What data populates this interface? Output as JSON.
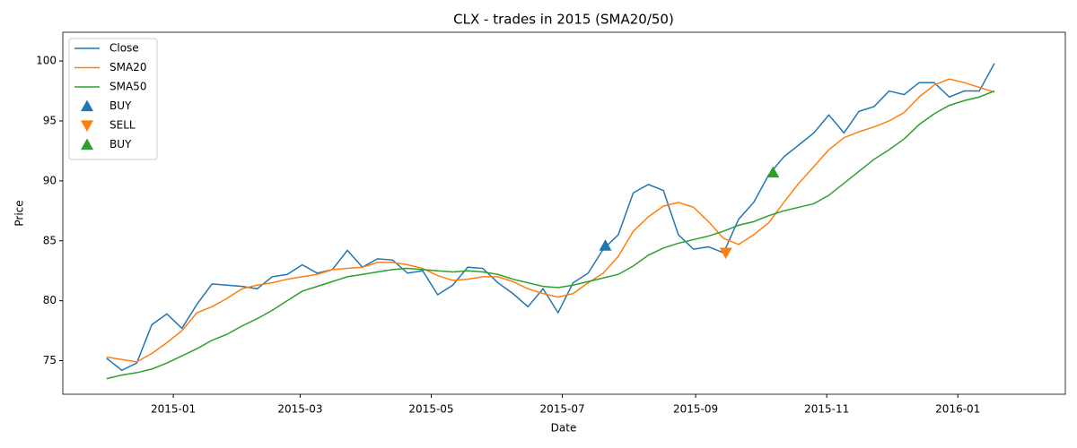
{
  "chart_data": {
    "type": "line",
    "title": "CLX - trades in 2015 (SMA20/50)",
    "x_label": "Date",
    "y_label": "Price",
    "x": [
      16405,
      16412,
      16419,
      16426,
      16433,
      16440,
      16447,
      16454,
      16461,
      16468,
      16475,
      16482,
      16489,
      16496,
      16503,
      16510,
      16517,
      16524,
      16531,
      16538,
      16545,
      16552,
      16559,
      16566,
      16573,
      16580,
      16587,
      16594,
      16601,
      16608,
      16615,
      16622,
      16629,
      16636,
      16643,
      16650,
      16657,
      16664,
      16671,
      16678,
      16685,
      16692,
      16699,
      16706,
      16713,
      16720,
      16727,
      16734,
      16741,
      16748,
      16755,
      16762,
      16769,
      16776,
      16783,
      16790,
      16797,
      16804,
      16811,
      16818
    ],
    "series": [
      {
        "name": "Close",
        "color": "#1f77b4",
        "values": [
          75.2,
          74.2,
          74.8,
          78.0,
          78.9,
          77.7,
          79.7,
          81.4,
          81.3,
          81.2,
          81.0,
          82.0,
          82.2,
          83.0,
          82.3,
          82.6,
          84.2,
          82.8,
          83.5,
          83.4,
          82.3,
          82.5,
          80.5,
          81.3,
          82.8,
          82.7,
          81.5,
          80.6,
          79.5,
          81.0,
          79.0,
          81.5,
          82.3,
          84.3,
          85.5,
          89.0,
          89.7,
          89.2,
          85.5,
          84.3,
          84.5,
          84.0,
          86.8,
          88.2,
          90.5,
          92.0,
          93.0,
          94.0,
          95.5,
          94.0,
          95.8,
          96.2,
          97.5,
          97.2,
          98.2,
          98.2,
          97.0,
          97.5,
          97.5,
          99.8
        ]
      },
      {
        "name": "SMA20",
        "color": "#ff7f0e",
        "values": [
          75.3,
          75.1,
          74.9,
          75.6,
          76.5,
          77.5,
          79.0,
          79.5,
          80.2,
          81.0,
          81.3,
          81.5,
          81.8,
          82.0,
          82.2,
          82.6,
          82.7,
          82.8,
          83.2,
          83.2,
          83.0,
          82.7,
          82.1,
          81.7,
          81.8,
          82.0,
          82.0,
          81.6,
          81.0,
          80.6,
          80.3,
          80.6,
          81.5,
          82.3,
          83.7,
          85.8,
          87.0,
          87.9,
          88.2,
          87.8,
          86.6,
          85.2,
          84.7,
          85.5,
          86.5,
          88.2,
          89.8,
          91.2,
          92.6,
          93.6,
          94.1,
          94.5,
          95.0,
          95.7,
          97.0,
          98.0,
          98.5,
          98.2,
          97.8,
          97.4
        ]
      },
      {
        "name": "SMA50",
        "color": "#2ca02c",
        "values": [
          73.5,
          73.8,
          74.0,
          74.3,
          74.8,
          75.4,
          76.0,
          76.7,
          77.2,
          77.9,
          78.5,
          79.2,
          80.0,
          80.8,
          81.2,
          81.6,
          82.0,
          82.2,
          82.4,
          82.6,
          82.7,
          82.6,
          82.5,
          82.4,
          82.5,
          82.4,
          82.2,
          81.8,
          81.5,
          81.2,
          81.1,
          81.3,
          81.6,
          81.9,
          82.2,
          82.9,
          83.8,
          84.4,
          84.8,
          85.1,
          85.4,
          85.8,
          86.3,
          86.6,
          87.1,
          87.5,
          87.8,
          88.1,
          88.8,
          89.8,
          90.8,
          91.8,
          92.6,
          93.5,
          94.7,
          95.6,
          96.3,
          96.7,
          97.0,
          97.5
        ]
      },
      {
        "name": "BUY",
        "color": "#1f77b4",
        "marker": "triangle-up",
        "x": [
          16637
        ],
        "values": [
          84.6
        ]
      },
      {
        "name": "SELL",
        "color": "#ff7f0e",
        "marker": "triangle-down",
        "x": [
          16693
        ],
        "values": [
          84.0
        ]
      },
      {
        "name": "BUY",
        "color": "#2ca02c",
        "marker": "triangle-up",
        "x": [
          16715
        ],
        "values": [
          90.7
        ]
      }
    ],
    "xlim": [
      16384.6,
      16851
    ],
    "xticks": [
      {
        "value": 16436,
        "label": "2015-01"
      },
      {
        "value": 16495,
        "label": "2015-03"
      },
      {
        "value": 16556,
        "label": "2015-05"
      },
      {
        "value": 16617,
        "label": "2015-07"
      },
      {
        "value": 16679,
        "label": "2015-09"
      },
      {
        "value": 16740,
        "label": "2015-11"
      },
      {
        "value": 16801,
        "label": "2016-01"
      }
    ],
    "ylim": [
      72.2,
      102.4
    ],
    "yticks": [
      75,
      80,
      85,
      90,
      95,
      100
    ],
    "grid": false,
    "legend": "upper-left"
  }
}
